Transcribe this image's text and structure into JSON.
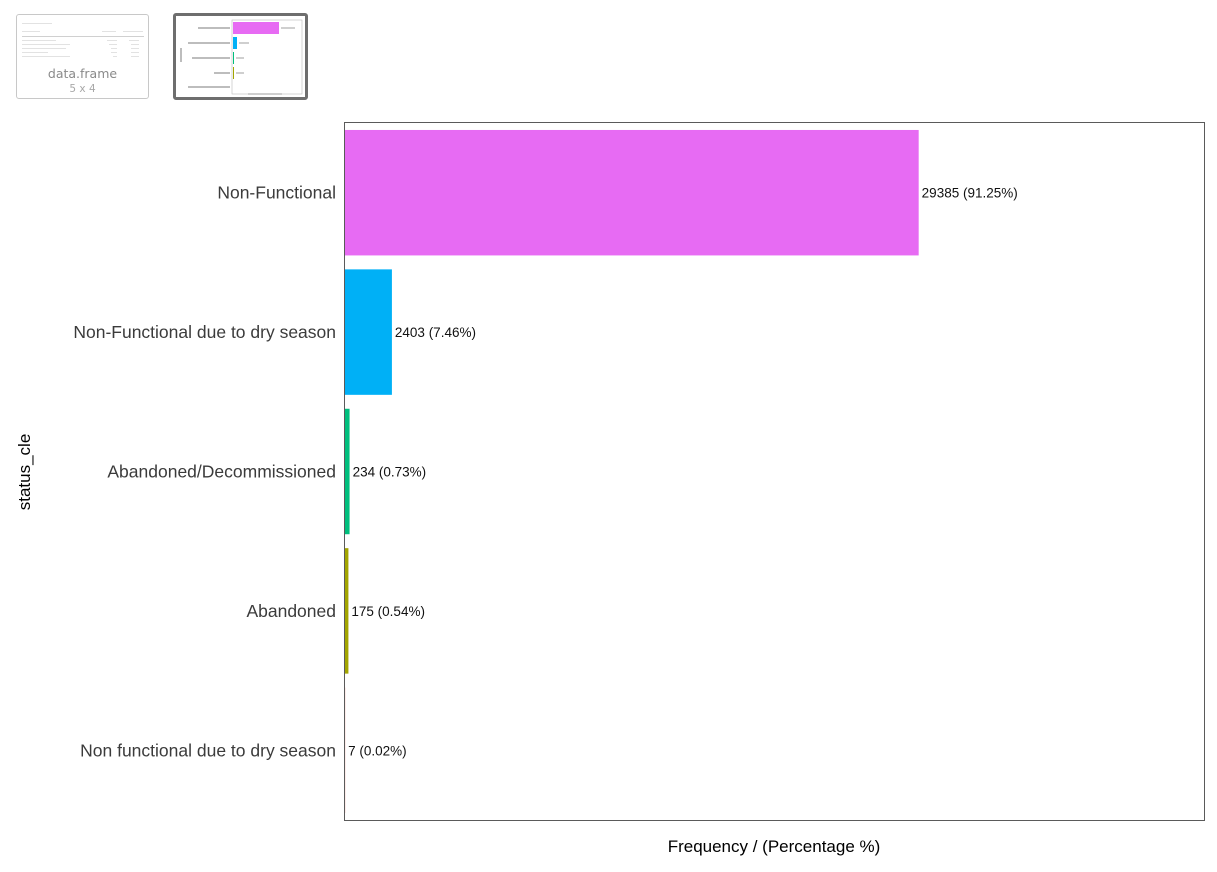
{
  "thumbnails": {
    "dataframe": {
      "label": "data.frame",
      "dims": "5 x 4"
    },
    "plot": {
      "selected": true
    }
  },
  "colors": {
    "Non-Functional": "#E76BF3",
    "Non-Functional due to dry season": "#00B0F6",
    "Abandoned/Decommissioned": "#00BF7D",
    "Abandoned": "#A3A500",
    "Non functional due to dry season": "#F8766D"
  },
  "chart_data": {
    "type": "bar",
    "orientation": "horizontal",
    "categories": [
      "Non-Functional",
      "Non-Functional due to dry season",
      "Abandoned/Decommissioned",
      "Abandoned",
      "Non functional due to dry season"
    ],
    "values": [
      29385,
      2403,
      234,
      175,
      7
    ],
    "data_labels": [
      "29385 (91.25%)",
      "2403 (7.46%)",
      "234 (0.73%)",
      "175 (0.54%)",
      "7 (0.02%)"
    ],
    "xlabel": "Frequency / (Percentage %)",
    "ylabel": "status_cle",
    "xlim": [
      0,
      44000
    ],
    "grid": false,
    "legend": "none",
    "x_ticks_visible": false
  }
}
